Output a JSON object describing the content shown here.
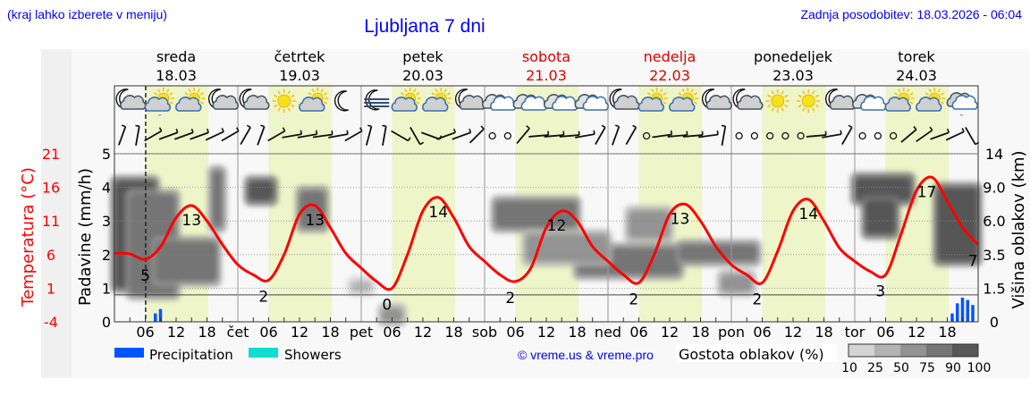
{
  "header": {
    "hint": "(kraj lahko izberete v meniju)",
    "title": "Ljubljana 7 dni",
    "updated": "Zadnja posodobitev: 18.03.2026 - 06:04"
  },
  "colors": {
    "link": "#0000ff",
    "temperature": "#ff0000",
    "weekend": "#dd0000",
    "daylight": "#eef5c9",
    "precipitation": "#0055ff",
    "showers": "#11ddcc"
  },
  "days": [
    {
      "name": "sreda",
      "date": "18.03",
      "abbr": "",
      "weekend": false,
      "icons": [
        "moon-cloud",
        "sun-cloud-drizzle",
        "sun-cloud",
        "moon-cloud"
      ]
    },
    {
      "name": "četrtek",
      "date": "19.03",
      "abbr": "čet",
      "weekend": false,
      "icons": [
        "moon-cloud",
        "sun",
        "sun-cloud",
        "moon"
      ]
    },
    {
      "name": "petek",
      "date": "20.03",
      "abbr": "pet",
      "weekend": false,
      "icons": [
        "moon-fog",
        "sun-cloud",
        "sun-cloud",
        "moon-cloud"
      ]
    },
    {
      "name": "sobota",
      "date": "21.03",
      "abbr": "sob",
      "weekend": true,
      "icons": [
        "overcast",
        "overcast",
        "overcast",
        "overcast"
      ]
    },
    {
      "name": "nedelja",
      "date": "22.03",
      "abbr": "ned",
      "weekend": true,
      "icons": [
        "moon-cloud",
        "sun-cloud",
        "sun-cloud",
        "moon-cloud"
      ]
    },
    {
      "name": "ponedeljek",
      "date": "23.03",
      "abbr": "pon",
      "weekend": false,
      "icons": [
        "moon-cloud",
        "sun",
        "sun",
        "moon-cloud"
      ]
    },
    {
      "name": "torek",
      "date": "24.03",
      "abbr": "tor",
      "weekend": false,
      "icons": [
        "overcast",
        "sun-cloud",
        "sun-cloud",
        "cloud-drizzle"
      ]
    }
  ],
  "chart_data": {
    "type": "line",
    "xlabel": "",
    "hour_ticks": [
      "06",
      "12",
      "18"
    ],
    "now_marker": "18.03 06:04",
    "ylabel_left": "Padavine (mm/h)",
    "ylabel_temp": "Temperatura (°C)",
    "ylabel_right": "Višina oblakov (km)",
    "precip_ticks": [
      "0",
      "1",
      "2",
      "3",
      "4",
      "5"
    ],
    "precip_range": [
      0,
      5
    ],
    "temp_ticks": [
      "-4",
      "1",
      "6",
      "11",
      "16",
      "21"
    ],
    "temp_range": [
      -4,
      21
    ],
    "cloud_ticks": [
      "0",
      "1.5",
      "3.5",
      "6.0",
      "9.0",
      "14"
    ],
    "grid": true,
    "temperature": {
      "name": "Temperatura",
      "hours_step": 3,
      "values": [
        6.2,
        6.1,
        5.3,
        7.2,
        11.5,
        13.3,
        11,
        7.5,
        4.5,
        3,
        2.2,
        6,
        12,
        13.3,
        10,
        6.2,
        4,
        2,
        1,
        6,
        12.5,
        14.5,
        11.5,
        7.2,
        5,
        3,
        2,
        4,
        10,
        12.5,
        11,
        7.2,
        5,
        3,
        1.8,
        6,
        12,
        13.5,
        11,
        7.2,
        4.5,
        3,
        1.8,
        6.5,
        12.5,
        14.2,
        11,
        7,
        5,
        3.5,
        3,
        9,
        15.5,
        17.5,
        14,
        10,
        7.5
      ],
      "labels": [
        {
          "day": 0,
          "hour": 6,
          "text": "5"
        },
        {
          "day": 0,
          "hour": 15,
          "text": "13"
        },
        {
          "day": 1,
          "hour": 5,
          "text": "2"
        },
        {
          "day": 1,
          "hour": 15,
          "text": "13"
        },
        {
          "day": 2,
          "hour": 5,
          "text": "0"
        },
        {
          "day": 2,
          "hour": 15,
          "text": "14"
        },
        {
          "day": 3,
          "hour": 5,
          "text": "2"
        },
        {
          "day": 3,
          "hour": 14,
          "text": "12"
        },
        {
          "day": 4,
          "hour": 5,
          "text": "2"
        },
        {
          "day": 4,
          "hour": 14,
          "text": "13"
        },
        {
          "day": 5,
          "hour": 5,
          "text": "2"
        },
        {
          "day": 5,
          "hour": 15,
          "text": "14"
        },
        {
          "day": 6,
          "hour": 5,
          "text": "3"
        },
        {
          "day": 6,
          "hour": 14,
          "text": "17"
        },
        {
          "day": 6,
          "hour": 23,
          "text": "7"
        }
      ]
    },
    "precipitation": {
      "name": "Precipitation",
      "bars": [
        {
          "t": 8,
          "mm": 0.25
        },
        {
          "t": 9,
          "mm": 0.38
        },
        {
          "t": 163,
          "mm": 0.25
        },
        {
          "t": 164,
          "mm": 0.55
        },
        {
          "t": 165,
          "mm": 0.72
        },
        {
          "t": 166,
          "mm": 0.65
        },
        {
          "t": 167,
          "mm": 0.5
        }
      ]
    },
    "cloud_density_cells": [
      {
        "t0": 0,
        "t1": 8,
        "h0": 1.0,
        "h1": 4.2,
        "d": 90
      },
      {
        "t0": 3,
        "t1": 12,
        "h0": 0.8,
        "h1": 3.8,
        "d": 75
      },
      {
        "t0": 8,
        "t1": 20,
        "h0": 1.2,
        "h1": 2.4,
        "d": 75
      },
      {
        "t0": 19,
        "t1": 21,
        "h0": 2.8,
        "h1": 4.5,
        "d": 75
      },
      {
        "t0": 26,
        "t1": 31,
        "h0": 3.6,
        "h1": 4.2,
        "d": 90
      },
      {
        "t0": 36,
        "t1": 41,
        "h0": 2.8,
        "h1": 3.9,
        "d": 75
      },
      {
        "t0": 46,
        "t1": 50,
        "h0": 0.9,
        "h1": 1.2,
        "d": 25
      },
      {
        "t0": 52,
        "t1": 56,
        "h0": 0,
        "h1": 0.4,
        "d": 50
      },
      {
        "t0": 74,
        "t1": 90,
        "h0": 2.8,
        "h1": 3.6,
        "d": 75
      },
      {
        "t0": 90,
        "t1": 110,
        "h0": 1.4,
        "h1": 2.2,
        "d": 75
      },
      {
        "t0": 80,
        "t1": 96,
        "h0": 1.8,
        "h1": 2.6,
        "d": 50
      },
      {
        "t0": 110,
        "t1": 125,
        "h0": 1.8,
        "h1": 2.3,
        "d": 75
      },
      {
        "t0": 100,
        "t1": 108,
        "h0": 2.5,
        "h1": 3.3,
        "d": 50
      },
      {
        "t0": 118,
        "t1": 124,
        "h0": 0.9,
        "h1": 1.4,
        "d": 50
      },
      {
        "t0": 144,
        "t1": 155,
        "h0": 3.6,
        "h1": 4.3,
        "d": 90
      },
      {
        "t0": 146,
        "t1": 152,
        "h0": 2.6,
        "h1": 3.6,
        "d": 90
      },
      {
        "t0": 160,
        "t1": 168,
        "h0": 1.8,
        "h1": 4.0,
        "d": 90
      }
    ]
  },
  "legend": {
    "precipitation": "Precipitation",
    "showers": "Showers",
    "credit": "© vreme.us & vreme.pro",
    "cloud_title": "Gostota oblakov (%)",
    "cloud_scale": [
      "10",
      "25",
      "50",
      "75",
      "90",
      "100"
    ],
    "cloud_colors": [
      "#d3d3d3",
      "#b2b2b2",
      "#939393",
      "#757575",
      "#575757"
    ]
  }
}
